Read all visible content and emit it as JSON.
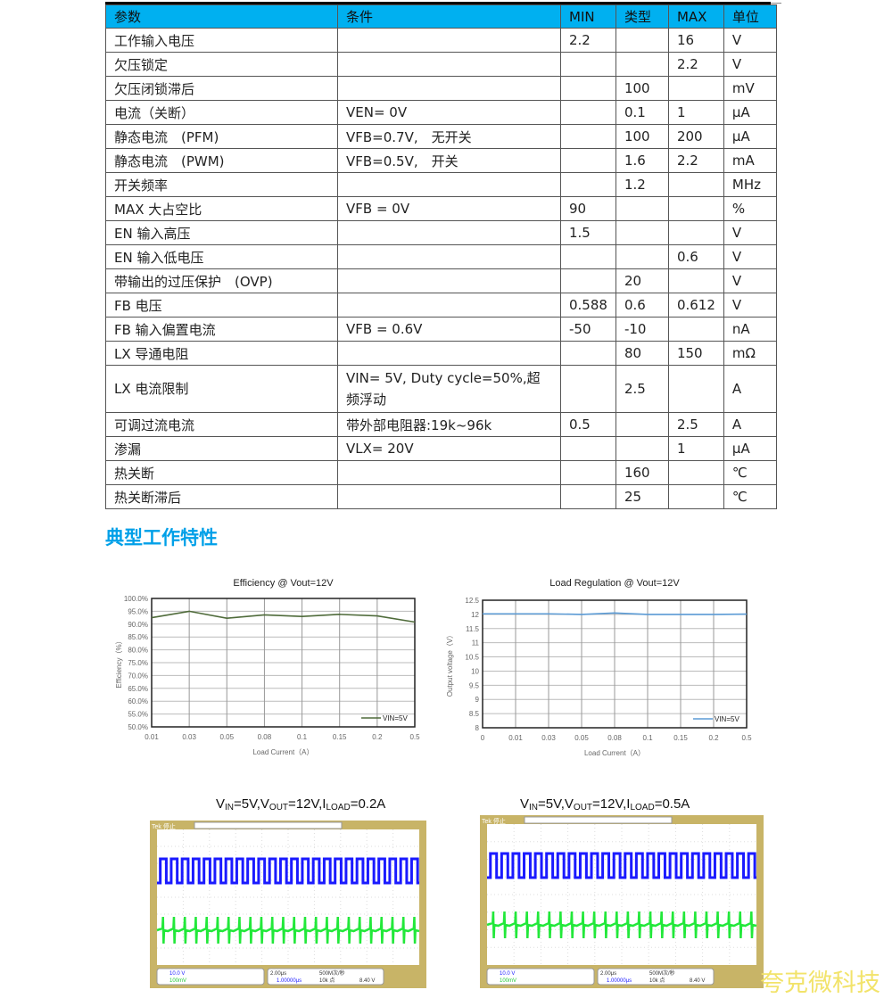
{
  "table": {
    "headers": [
      "参数",
      "条件",
      "MIN",
      "类型",
      "MAX",
      "单位"
    ],
    "rows": [
      [
        "工作输入电压",
        "",
        "2.2",
        "",
        "16",
        "V"
      ],
      [
        "欠压锁定",
        "",
        "",
        "",
        "2.2",
        "V"
      ],
      [
        "欠压闭锁滞后",
        "",
        "",
        "100",
        "",
        "mV"
      ],
      [
        "电流（关断）",
        "VEN= 0V",
        "",
        "0.1",
        "1",
        "μA"
      ],
      [
        "静态电流　(PFM)",
        "VFB=0.7V,　无开关",
        "",
        "100",
        "200",
        "μA"
      ],
      [
        "静态电流　(PWM)",
        "VFB=0.5V,　开关",
        "",
        "1.6",
        "2.2",
        "mA"
      ],
      [
        "开关频率",
        "",
        "",
        "1.2",
        "",
        "MHz"
      ],
      [
        "MAX 大占空比",
        "VFB = 0V",
        "90",
        "",
        "",
        "%"
      ],
      [
        "EN  输入高压",
        "",
        "1.5",
        "",
        "",
        "V"
      ],
      [
        "EN  输入低电压",
        "",
        "",
        "",
        "0.6",
        "V"
      ],
      [
        "带输出的过压保护　(OVP)",
        "",
        "",
        "20",
        "",
        "V"
      ],
      [
        "FB 电压",
        "",
        "0.588",
        "0.6",
        "0.612",
        "V"
      ],
      [
        "FB 输入偏置电流",
        "VFB = 0.6V",
        "-50",
        "-10",
        "",
        "nA"
      ],
      [
        "LX  导通电阻",
        "",
        "",
        "80",
        "150",
        "mΩ"
      ],
      [
        "LX  电流限制",
        "VIN= 5V, Duty cycle=50%,超频浮动",
        "",
        "2.5",
        "",
        "A"
      ],
      [
        "可调过流电流",
        "带外部电阻器:19k~96k",
        "0.5",
        "",
        "2.5",
        "A"
      ],
      [
        "渗漏",
        "VLX= 20V",
        "",
        "",
        "1",
        "μA"
      ],
      [
        "热关断",
        "",
        "",
        "160",
        "",
        "℃"
      ],
      [
        "热关断滞后",
        "",
        "",
        "25",
        "",
        "℃"
      ]
    ]
  },
  "section_title": "典型工作特性",
  "chart_data": [
    {
      "type": "line",
      "title": "Efficiency  @  Vout=12V",
      "xlabel": "Load Current（A）",
      "ylabel": "Efficiency（%）",
      "categories": [
        "0.01",
        "0.03",
        "0.05",
        "0.08",
        "0.1",
        "0.15",
        "0.2",
        "0.5"
      ],
      "yticks": [
        "50.0%",
        "55.0%",
        "60.0%",
        "65.0%",
        "70.0%",
        "75.0%",
        "80.0%",
        "85.0%",
        "90.0%",
        "95.0%",
        "100.0%"
      ],
      "ylim": [
        50,
        100
      ],
      "grid": true,
      "legend": "bottom-right",
      "color": "#4f6b3a",
      "series": [
        {
          "name": "VIN=5V",
          "values": [
            92.5,
            95,
            92.3,
            93.6,
            93,
            93.8,
            93.2,
            90.8
          ]
        }
      ]
    },
    {
      "type": "line",
      "title": "Load Regulation @ Vout=12V",
      "xlabel": "Load Current（A）",
      "ylabel": "Output voltage（V）",
      "categories": [
        "0",
        "0.01",
        "0.03",
        "0.05",
        "0.08",
        "0.1",
        "0.15",
        "0.2",
        "0.5"
      ],
      "yticks": [
        "8",
        "8.5",
        "9",
        "9.5",
        "10",
        "10.5",
        "11",
        "11.5",
        "12",
        "12.5"
      ],
      "ylim": [
        8,
        12.5
      ],
      "grid": true,
      "legend": "bottom-right",
      "color": "#5b9bd5",
      "series": [
        {
          "name": "VIN=5V",
          "values": [
            12.02,
            12.02,
            12.02,
            12.0,
            12.05,
            12.0,
            12.0,
            12.0,
            12.01
          ]
        }
      ]
    }
  ],
  "scopes": [
    {
      "title_parts": [
        "V",
        "IN",
        "=5V,V",
        "OUT",
        "=12V,I",
        "LOAD",
        "=0.2A"
      ],
      "ch1": "10.0 V",
      "ch3": "100mV",
      "time": "2.00μs",
      "rate": "500M次/秒",
      "delay": "1.00000μs",
      "points": "10k 点",
      "trig": "8.40 V",
      "brand": "Tek 停止",
      "periods": 24
    },
    {
      "title_parts": [
        "V",
        "IN",
        "=5V,V",
        "OUT",
        "=12V,I",
        "LOAD",
        "=0.5A"
      ],
      "ch1": "10.0 V",
      "ch3": "100mV",
      "time": "2.00μs",
      "rate": "500M次/秒",
      "delay": "1.00000μs",
      "points": "10k 点",
      "trig": "8.40 V",
      "brand": "Tek 停止",
      "periods": 24
    }
  ],
  "watermark": "夸克微科技"
}
